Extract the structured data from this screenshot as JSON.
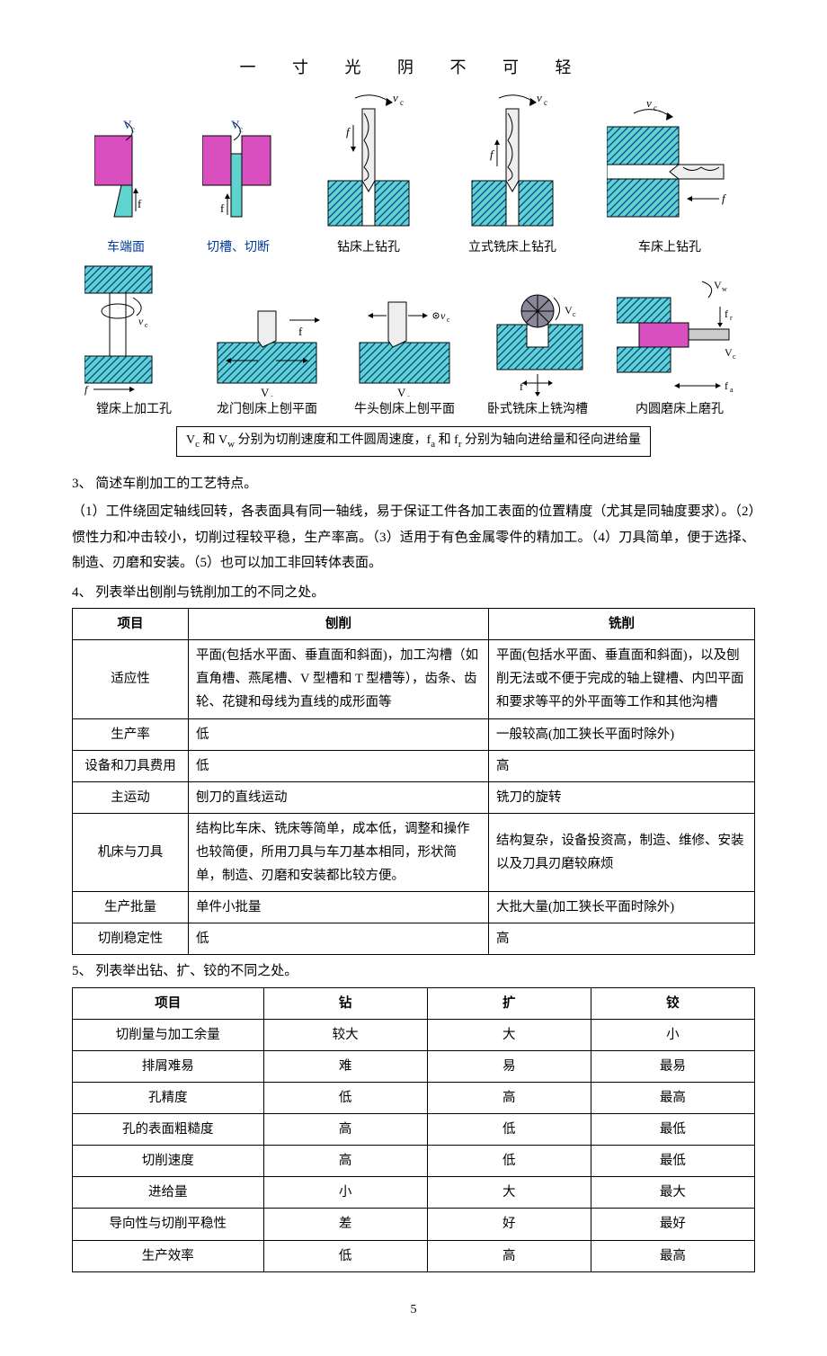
{
  "header_motto": "一 寸 光 阴 不 可 轻",
  "page_number": "5",
  "colors": {
    "magenta": "#d94fbf",
    "cyan": "#5fd4cf",
    "blue_text": "#003a9b",
    "stroke": "#000000",
    "hatch": "#0a3f8f"
  },
  "diagrams": {
    "row1": [
      {
        "label": "车端面",
        "vc": "V",
        "f": "f"
      },
      {
        "label": "切槽、切断",
        "vc": "V",
        "f": "f"
      },
      {
        "label": "钻床上钻孔",
        "vc": "v",
        "f": "f"
      },
      {
        "label": "立式铣床上钻孔",
        "vc": "v",
        "f": "f"
      },
      {
        "label": "车床上钻孔",
        "vc": "v",
        "f": "f"
      }
    ],
    "row2": [
      {
        "label": "镗床上加工孔",
        "vc": "v",
        "f": "f"
      },
      {
        "label": "龙门刨床上刨平面",
        "vc": "V",
        "f": "f"
      },
      {
        "label": "牛头刨床上刨平面",
        "vc": "V",
        "f": "v"
      },
      {
        "label": "卧式铣床上铣沟槽",
        "vc": "V",
        "f": "f"
      },
      {
        "label": "内圆磨床上磨孔",
        "vw": "V",
        "fr": "f",
        "fa": "f",
        "vc": "V"
      }
    ]
  },
  "legend": {
    "part1_a": "V",
    "part1_b": " 和 V",
    "part1_c": " 分别为切削速度和工件圆周速度，",
    "part2_a": "f",
    "part2_b": " 和 f",
    "part2_c": " 分别为轴向进给量和径向进给量",
    "sub_c": "c",
    "sub_w": "w",
    "sub_a": "a",
    "sub_r": "r"
  },
  "q3": {
    "title": "3、 简述车削加工的工艺特点。",
    "text": "（1）工件绕固定轴线回转，各表面具有同一轴线，易于保证工件各加工表面的位置精度（尤其是同轴度要求）。（2）惯性力和冲击较小，切削过程较平稳，生产率高。（3）适用于有色金属零件的精加工。（4）刀具简单，便于选择、制造、刃磨和安装。（5）也可以加工非回转体表面。"
  },
  "q4": {
    "title": "4、 列表举出刨削与铣削加工的不同之处。",
    "headers": [
      "项目",
      "刨削",
      "铣削"
    ],
    "rows": [
      {
        "item": "适应性",
        "a": "平面(包括水平面、垂直面和斜面)，加工沟槽（如直角槽、燕尾槽、V 型槽和 T 型槽等），齿条、齿轮、花键和母线为直线的成形面等",
        "b": "平面(包括水平面、垂直面和斜面)，以及刨削无法或不便于完成的轴上键槽、内凹平面和要求等平的外平面等工作和其他沟槽"
      },
      {
        "item": "生产率",
        "a": "低",
        "b": "一般较高(加工狭长平面时除外)"
      },
      {
        "item": "设备和刀具费用",
        "a": "低",
        "b": "高"
      },
      {
        "item": "主运动",
        "a": "刨刀的直线运动",
        "b": "铣刀的旋转"
      },
      {
        "item": "机床与刀具",
        "a": "结构比车床、铣床等简单，成本低，调整和操作也较简便，所用刀具与车刀基本相同，形状简单，制造、刃磨和安装都比较方便。",
        "b": "结构复杂，设备投资高，制造、维修、安装以及刀具刃磨较麻烦"
      },
      {
        "item": "生产批量",
        "a": "单件小批量",
        "b": "大批大量(加工狭长平面时除外)"
      },
      {
        "item": "切削稳定性",
        "a": "低",
        "b": "高"
      }
    ]
  },
  "q5": {
    "title": "5、 列表举出钻、扩、铰的不同之处。",
    "headers": [
      "项目",
      "钻",
      "扩",
      "铰"
    ],
    "rows": [
      {
        "item": "切削量与加工余量",
        "a": "较大",
        "b": "大",
        "c": "小"
      },
      {
        "item": "排屑难易",
        "a": "难",
        "b": "易",
        "c": "最易"
      },
      {
        "item": "孔精度",
        "a": "低",
        "b": "高",
        "c": "最高"
      },
      {
        "item": "孔的表面粗糙度",
        "a": "高",
        "b": "低",
        "c": "最低"
      },
      {
        "item": "切削速度",
        "a": "高",
        "b": "低",
        "c": "最低"
      },
      {
        "item": "进给量",
        "a": "小",
        "b": "大",
        "c": "最大"
      },
      {
        "item": "导向性与切削平稳性",
        "a": "差",
        "b": "好",
        "c": "最好"
      },
      {
        "item": "生产效率",
        "a": "低",
        "b": "高",
        "c": "最高"
      }
    ]
  }
}
